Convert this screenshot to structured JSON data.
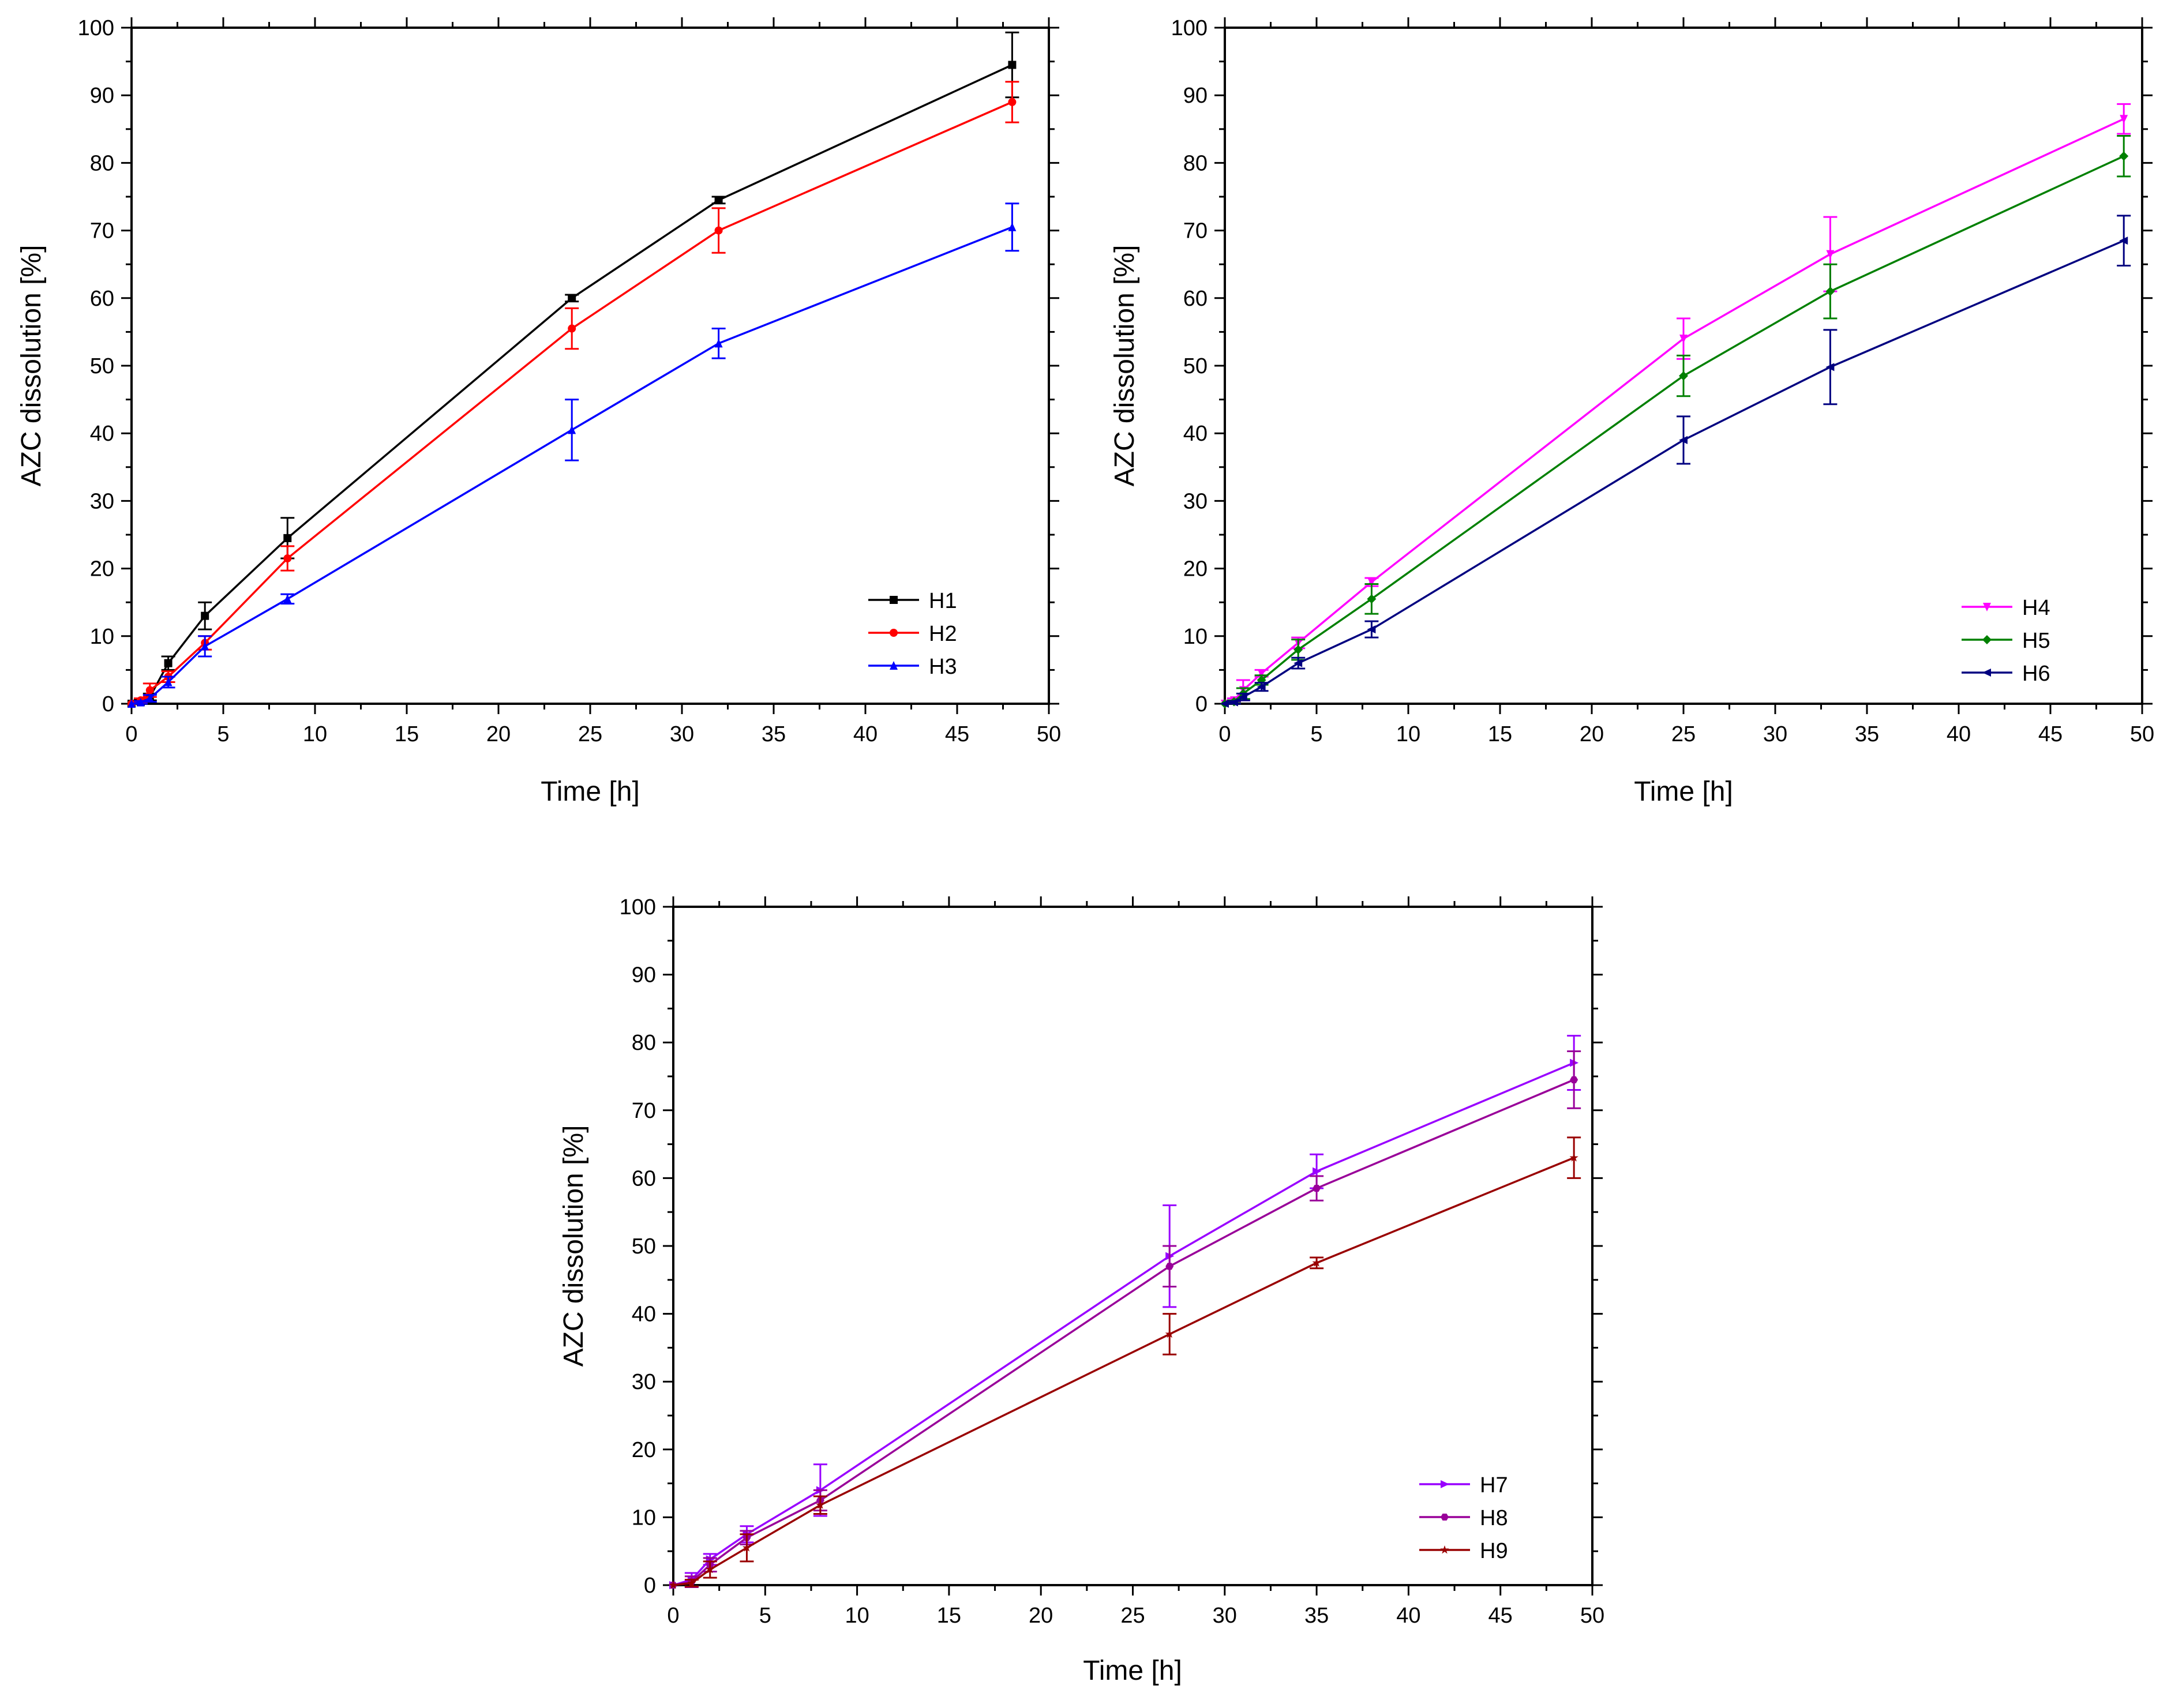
{
  "chart_data": [
    {
      "type": "line",
      "xlabel": "Time [h]",
      "ylabel": "AZC dissolution [%]",
      "xlim": [
        0,
        50
      ],
      "ylim": [
        0,
        100
      ],
      "xticks": [
        "0",
        "5",
        "10",
        "15",
        "20",
        "25",
        "30",
        "35",
        "40",
        "45",
        "50"
      ],
      "yticks": [
        "0",
        "10",
        "20",
        "30",
        "40",
        "50",
        "60",
        "70",
        "80",
        "90",
        "100"
      ],
      "legend_position": "bottom-right",
      "series": [
        {
          "name": "H1",
          "color": "#000000",
          "marker": "square",
          "x": [
            0,
            0.5,
            1,
            2,
            4,
            8.5,
            24,
            32,
            48
          ],
          "y": [
            0,
            0.3,
            1.0,
            6.0,
            13.0,
            24.5,
            60.0,
            74.5,
            94.5
          ],
          "err": [
            0,
            0.3,
            0.5,
            1.0,
            2.0,
            3.0,
            0.5,
            0.5,
            4.8
          ]
        },
        {
          "name": "H2",
          "color": "#ff0000",
          "marker": "circle",
          "x": [
            0,
            0.5,
            1,
            2,
            4,
            8.5,
            24,
            32,
            48
          ],
          "y": [
            0,
            0.5,
            2.0,
            4.0,
            9.0,
            21.5,
            55.5,
            70.0,
            89.0
          ],
          "err": [
            0,
            0.3,
            1.0,
            0.8,
            1.0,
            1.8,
            3.0,
            3.3,
            3.0
          ]
        },
        {
          "name": "H3",
          "color": "#0000ff",
          "marker": "triangle-up",
          "x": [
            0,
            0.5,
            1,
            2,
            4,
            8.5,
            24,
            32,
            48
          ],
          "y": [
            0,
            0.2,
            0.8,
            3.2,
            8.5,
            15.5,
            40.5,
            53.3,
            70.5
          ],
          "err": [
            0,
            0.2,
            0.5,
            0.8,
            1.5,
            0.7,
            4.5,
            2.2,
            3.5
          ]
        }
      ]
    },
    {
      "type": "line",
      "xlabel": "Time [h]",
      "ylabel": "AZC dissolution [%]",
      "xlim": [
        0,
        50
      ],
      "ylim": [
        0,
        100
      ],
      "xticks": [
        "0",
        "5",
        "10",
        "15",
        "20",
        "25",
        "30",
        "35",
        "40",
        "45",
        "50"
      ],
      "yticks": [
        "0",
        "10",
        "20",
        "30",
        "40",
        "50",
        "60",
        "70",
        "80",
        "90",
        "100"
      ],
      "legend_position": "bottom-right",
      "series": [
        {
          "name": "H4",
          "color": "#ff00ff",
          "marker": "triangle-down",
          "x": [
            0,
            0.5,
            1,
            2,
            4,
            8,
            25,
            33,
            49
          ],
          "y": [
            0,
            0.5,
            2.0,
            4.5,
            9.0,
            18.0,
            54.0,
            66.5,
            86.5
          ],
          "err": [
            0,
            0.3,
            1.5,
            0.5,
            0.8,
            0.6,
            3.0,
            5.5,
            2.2
          ]
        },
        {
          "name": "H5",
          "color": "#008000",
          "marker": "diamond",
          "x": [
            0,
            0.5,
            1,
            2,
            4,
            8,
            25,
            33,
            49
          ],
          "y": [
            0,
            0.3,
            1.5,
            3.5,
            8.0,
            15.5,
            48.5,
            61.0,
            81.0
          ],
          "err": [
            0,
            0.2,
            0.8,
            0.7,
            1.5,
            2.2,
            3.0,
            4.0,
            3.0
          ]
        },
        {
          "name": "H6",
          "color": "#000080",
          "marker": "left-triangle",
          "x": [
            0,
            0.5,
            1,
            2,
            4,
            8,
            25,
            33,
            49
          ],
          "y": [
            0,
            0.2,
            1.0,
            2.5,
            6.0,
            11.0,
            39.0,
            49.8,
            68.5
          ],
          "err": [
            0,
            0.2,
            0.5,
            0.6,
            0.8,
            1.2,
            3.5,
            5.5,
            3.7
          ]
        }
      ]
    },
    {
      "type": "line",
      "xlabel": "Time [h]",
      "ylabel": "AZC dissolution [%]",
      "xlim": [
        0,
        50
      ],
      "ylim": [
        0,
        100
      ],
      "xticks": [
        "0",
        "5",
        "10",
        "15",
        "20",
        "25",
        "30",
        "35",
        "40",
        "45",
        "50"
      ],
      "yticks": [
        "0",
        "10",
        "20",
        "30",
        "40",
        "50",
        "60",
        "70",
        "80",
        "90",
        "100"
      ],
      "legend_position": "bottom-right",
      "series": [
        {
          "name": "H7",
          "color": "#9900ff",
          "marker": "right-triangle",
          "x": [
            0,
            1,
            2,
            4,
            8,
            27,
            35,
            49
          ],
          "y": [
            0,
            0.8,
            3.8,
            7.5,
            14.0,
            48.5,
            61.0,
            77.0
          ],
          "err": [
            0,
            1.0,
            0.8,
            1.2,
            3.8,
            7.5,
            2.5,
            4.0
          ]
        },
        {
          "name": "H8",
          "color": "#990099",
          "marker": "hexagon",
          "x": [
            0,
            1,
            2,
            4,
            8,
            27,
            35,
            49
          ],
          "y": [
            0,
            0.5,
            3.0,
            7.0,
            12.5,
            47.0,
            58.5,
            74.5
          ],
          "err": [
            0,
            0.8,
            1.0,
            1.0,
            1.5,
            3.0,
            1.8,
            4.2
          ]
        },
        {
          "name": "H9",
          "color": "#990000",
          "marker": "star",
          "x": [
            0,
            1,
            2,
            4,
            8,
            27,
            35,
            49
          ],
          "y": [
            0,
            0.3,
            2.3,
            5.5,
            11.8,
            37.0,
            47.5,
            63.0
          ],
          "err": [
            0,
            0.5,
            1.2,
            2.0,
            1.3,
            3.0,
            0.8,
            3.0
          ]
        }
      ]
    }
  ]
}
